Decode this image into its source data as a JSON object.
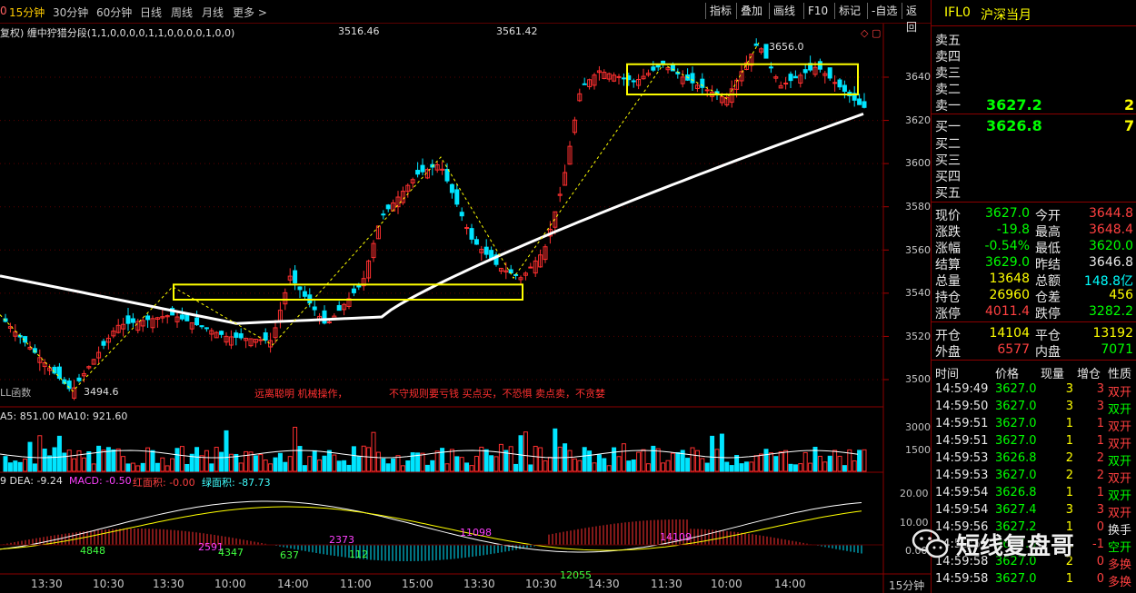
{
  "toolbar": {
    "timeframes": [
      "15分钟",
      "30分钟",
      "60分钟",
      "日线",
      "周线",
      "月线",
      "更多 >"
    ],
    "active_timeframe": "15分钟",
    "buttons": [
      "指标",
      "叠加",
      "画线",
      "F10",
      "标记",
      "-自选",
      "返回"
    ],
    "left_fragment": "0"
  },
  "chart": {
    "indicator_label": "复权) 缠中狞猎分段(1,1,0,0,0,0,1,1,0,0,0,0,1,0,0)",
    "annotation_top_1": "3516.46",
    "annotation_top_2": "3561.42",
    "peak_label": "3656.0",
    "low_label": "3494.6",
    "bottom_left_label": "LL函数",
    "motto_1": "远离聪明 机械操作，",
    "motto_2": "不守规则要亏钱   买点买，不恐惧   卖点卖，不贪婪",
    "price_axis": [
      "3640",
      "3620",
      "3600",
      "3580",
      "3560",
      "3540",
      "3520",
      "3500"
    ],
    "volume_label": "A5: 851.00  MA10: 921.60",
    "volume_axis": [
      "3000",
      "1500"
    ],
    "macd_label": {
      "dea": "9  DEA: -9.24",
      "macd": "MACD: -0.50",
      "red_area": "红面积: -0.00",
      "green_area": "绿面积: -87.73"
    },
    "macd_axis": [
      "20.00",
      "10.00",
      "0.00"
    ],
    "macd_numbers": [
      "4848",
      "2591",
      "4347",
      "637",
      "2373",
      "112",
      "11098",
      "12055",
      "14109"
    ],
    "time_axis": [
      "13:30",
      "10:30",
      "13:30",
      "10:00",
      "14:00",
      "11:00",
      "15:00",
      "13:30",
      "10:30",
      "14:30",
      "11:30",
      "10:00",
      "14:00"
    ],
    "period_label": "15分钟",
    "zone_low": [
      3537,
      3544
    ],
    "zone_high": [
      3632,
      3646
    ],
    "ma_start": 3548,
    "ma_end": 3623
  },
  "chart_data": {
    "type": "line",
    "title": "",
    "xlabel": "",
    "ylabel": "",
    "ylim": [
      3490,
      3660
    ],
    "x": [
      "13:30",
      "10:30",
      "13:30",
      "10:00",
      "14:00",
      "11:00",
      "15:00",
      "13:30",
      "10:30",
      "14:30",
      "11:30",
      "10:00",
      "14:00"
    ],
    "series": [
      {
        "name": "",
        "values": [
          3530,
          3494.6,
          3525,
          3520,
          3548,
          3600,
          3552,
          3575,
          3640,
          3640,
          3638,
          3646,
          3627
        ]
      }
    ]
  },
  "quote": {
    "symbol": "IFL0",
    "name": "沪深当月",
    "asks": [
      "卖五",
      "卖四",
      "卖三",
      "卖二",
      "卖一"
    ],
    "bids": [
      "买一",
      "买二",
      "买三",
      "买四",
      "买五"
    ],
    "ask1_price": "3627.2",
    "ask1_vol": "2",
    "bid1_price": "3626.8",
    "bid1_vol": "7",
    "stats": [
      {
        "l1": "现价",
        "v1": "3627.0",
        "c1": "green",
        "l2": "今开",
        "v2": "3644.8",
        "c2": "red"
      },
      {
        "l1": "涨跌",
        "v1": "-19.8",
        "c1": "green",
        "l2": "最高",
        "v2": "3648.4",
        "c2": "red"
      },
      {
        "l1": "涨幅",
        "v1": "-0.54%",
        "c1": "green",
        "l2": "最低",
        "v2": "3620.0",
        "c2": "green"
      },
      {
        "l1": "结算",
        "v1": "3629.0",
        "c1": "green",
        "l2": "昨结",
        "v2": "3646.8",
        "c2": "white"
      },
      {
        "l1": "总量",
        "v1": "13648",
        "c1": "yellow",
        "l2": "总额",
        "v2": "148.8亿",
        "c2": "cyan"
      },
      {
        "l1": "持仓",
        "v1": "26960",
        "c1": "yellow",
        "l2": "仓差",
        "v2": "456",
        "c2": "yellow"
      },
      {
        "l1": "涨停",
        "v1": "4011.4",
        "c1": "red",
        "l2": "跌停",
        "v2": "3282.2",
        "c2": "green"
      },
      {
        "l1": "开仓",
        "v1": "14104",
        "c1": "yellow",
        "l2": "平仓",
        "v2": "13192",
        "c2": "yellow"
      },
      {
        "l1": "外盘",
        "v1": "6577",
        "c1": "red",
        "l2": "内盘",
        "v2": "7071",
        "c2": "green"
      }
    ],
    "tick_header": [
      "时间",
      "价格",
      "现量",
      "增仓",
      "性质"
    ],
    "ticks": [
      {
        "t": "14:59:49",
        "p": "3627.0",
        "q": "3",
        "z": "3",
        "n": "双开",
        "c": "red"
      },
      {
        "t": "14:59:50",
        "p": "3627.0",
        "q": "3",
        "z": "3",
        "n": "双开",
        "c": "green"
      },
      {
        "t": "14:59:51",
        "p": "3627.0",
        "q": "1",
        "z": "1",
        "n": "双开",
        "c": "red"
      },
      {
        "t": "14:59:51",
        "p": "3627.0",
        "q": "1",
        "z": "1",
        "n": "双开",
        "c": "red"
      },
      {
        "t": "14:59:53",
        "p": "3626.8",
        "q": "2",
        "z": "2",
        "n": "双开",
        "c": "green"
      },
      {
        "t": "14:59:53",
        "p": "3627.0",
        "q": "2",
        "z": "2",
        "n": "双开",
        "c": "red"
      },
      {
        "t": "14:59:54",
        "p": "3626.8",
        "q": "1",
        "z": "1",
        "n": "双开",
        "c": "green"
      },
      {
        "t": "14:59:54",
        "p": "3627.4",
        "q": "3",
        "z": "3",
        "n": "双开",
        "c": "red"
      },
      {
        "t": "14:59:56",
        "p": "3627.2",
        "q": "1",
        "z": "0",
        "n": "换手",
        "c": "white"
      },
      {
        "t": "14:59:57",
        "p": "3627.0",
        "q": "1",
        "z": "-1",
        "n": "空开",
        "c": "green"
      },
      {
        "t": "14:59:58",
        "p": "3627.0",
        "q": "2",
        "z": "0",
        "n": "多换",
        "c": "red"
      },
      {
        "t": "14:59:58",
        "p": "3627.0",
        "q": "1",
        "z": "0",
        "n": "多换",
        "c": "red"
      }
    ]
  },
  "watermark": {
    "text": "短线复盘哥",
    "icon": "wechat-icon"
  }
}
